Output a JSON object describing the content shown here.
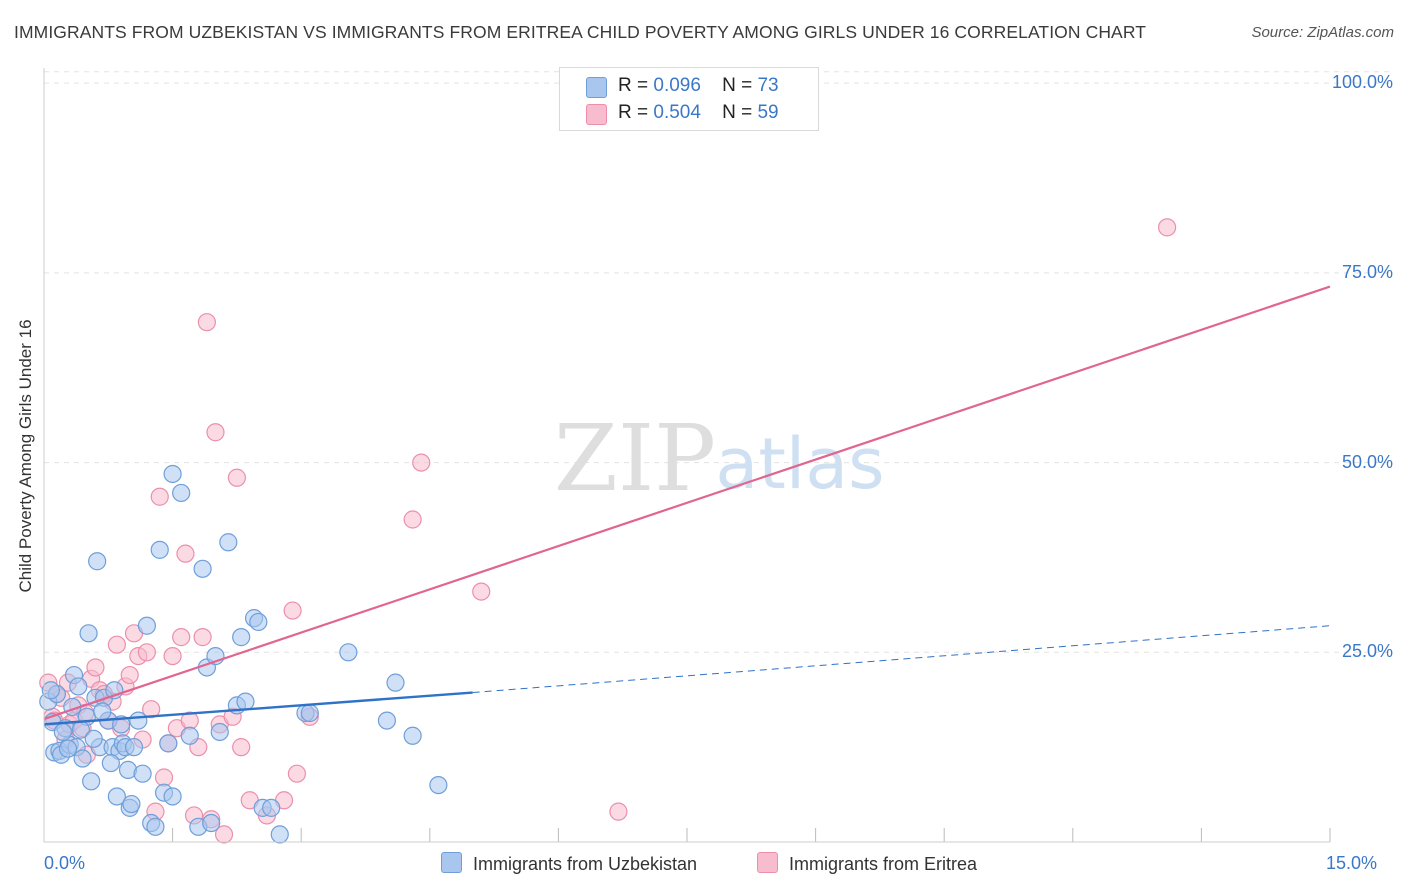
{
  "title": "IMMIGRANTS FROM UZBEKISTAN VS IMMIGRANTS FROM ERITREA CHILD POVERTY AMONG GIRLS UNDER 16 CORRELATION CHART",
  "source": "Source: ZipAtlas.com",
  "watermark": {
    "zip": "ZIP",
    "atlas": "atlas"
  },
  "legend": {
    "uzbekistan": {
      "r_label": "R =",
      "r_value": "0.096",
      "n_label": "N =",
      "n_value": "73"
    },
    "eritrea": {
      "r_label": "R =",
      "r_value": "0.504",
      "n_label": "N =",
      "n_value": "59"
    }
  },
  "chart_data": {
    "type": "scatter",
    "title": "IMMIGRANTS FROM UZBEKISTAN VS IMMIGRANTS FROM ERITREA CHILD POVERTY AMONG GIRLS UNDER 16 CORRELATION CHART",
    "xlabel": "",
    "ylabel": "Child Poverty Among Girls Under 16",
    "xlim": [
      0,
      15
    ],
    "ylim": [
      0,
      102
    ],
    "x_tick_labels": {
      "min": "0.0%",
      "max": "15.0%"
    },
    "y_ticks": [
      {
        "value": 25,
        "label": "25.0%"
      },
      {
        "value": 50,
        "label": "50.0%"
      },
      {
        "value": 75,
        "label": "75.0%"
      },
      {
        "value": 100,
        "label": "100.0%"
      }
    ],
    "grid": true,
    "series": [
      {
        "name": "Immigrants from Uzbekistan",
        "color": "#a9c6ee",
        "stroke": "#6f9fd9",
        "trend": {
          "x0": 0,
          "y0": 15.5,
          "x1": 5.0,
          "y1": 19.7,
          "dash_to_x": 15.0,
          "dash_to_y": 28.5,
          "color": "#2f72c8"
        },
        "points": [
          [
            0.05,
            18.5
          ],
          [
            0.1,
            15.8
          ],
          [
            0.12,
            11.8
          ],
          [
            0.15,
            19.5
          ],
          [
            0.18,
            12.0
          ],
          [
            0.2,
            11.5
          ],
          [
            0.25,
            15.0
          ],
          [
            0.3,
            12.8
          ],
          [
            0.35,
            22.0
          ],
          [
            0.38,
            12.5
          ],
          [
            0.4,
            20.5
          ],
          [
            0.45,
            11.0
          ],
          [
            0.5,
            16.5
          ],
          [
            0.52,
            27.5
          ],
          [
            0.55,
            8.0
          ],
          [
            0.6,
            19.0
          ],
          [
            0.62,
            37.0
          ],
          [
            0.65,
            12.5
          ],
          [
            0.7,
            19.0
          ],
          [
            0.75,
            16.0
          ],
          [
            0.8,
            12.5
          ],
          [
            0.82,
            20.0
          ],
          [
            0.85,
            6.0
          ],
          [
            0.88,
            12.0
          ],
          [
            0.9,
            15.5
          ],
          [
            0.92,
            13.0
          ],
          [
            0.95,
            12.5
          ],
          [
            0.98,
            9.5
          ],
          [
            1.0,
            4.5
          ],
          [
            1.02,
            5.0
          ],
          [
            1.05,
            12.5
          ],
          [
            1.1,
            16.0
          ],
          [
            1.15,
            9.0
          ],
          [
            1.2,
            28.5
          ],
          [
            1.25,
            2.5
          ],
          [
            1.3,
            2.0
          ],
          [
            1.35,
            38.5
          ],
          [
            1.4,
            6.5
          ],
          [
            1.45,
            13.0
          ],
          [
            1.5,
            48.5
          ],
          [
            1.5,
            6.0
          ],
          [
            1.6,
            46.0
          ],
          [
            1.7,
            14.0
          ],
          [
            1.8,
            2.0
          ],
          [
            1.85,
            36.0
          ],
          [
            1.9,
            23.0
          ],
          [
            1.95,
            2.5
          ],
          [
            2.0,
            24.5
          ],
          [
            2.05,
            14.5
          ],
          [
            2.15,
            39.5
          ],
          [
            2.25,
            18.0
          ],
          [
            2.3,
            27.0
          ],
          [
            2.35,
            18.5
          ],
          [
            2.45,
            29.5
          ],
          [
            2.5,
            29.0
          ],
          [
            2.55,
            4.5
          ],
          [
            2.65,
            4.5
          ],
          [
            2.75,
            1.0
          ],
          [
            3.05,
            17.0
          ],
          [
            3.1,
            17.0
          ],
          [
            3.55,
            25.0
          ],
          [
            4.0,
            16.0
          ],
          [
            4.1,
            21.0
          ],
          [
            4.3,
            14.0
          ],
          [
            4.6,
            7.5
          ],
          [
            0.08,
            20.0
          ],
          [
            0.22,
            14.5
          ],
          [
            0.28,
            12.3
          ],
          [
            0.33,
            17.8
          ],
          [
            0.43,
            14.8
          ],
          [
            0.58,
            13.6
          ],
          [
            0.68,
            17.2
          ],
          [
            0.78,
            10.4
          ]
        ]
      },
      {
        "name": "Immigrants from Eritrea",
        "color": "#f7bccd",
        "stroke": "#ec8fad",
        "trend": {
          "x0": 0,
          "y0": 16.2,
          "x1": 15.0,
          "y1": 73.2,
          "color": "#e0668f"
        },
        "points": [
          [
            0.05,
            21.0
          ],
          [
            0.1,
            16.5
          ],
          [
            0.15,
            19.5
          ],
          [
            0.2,
            19.0
          ],
          [
            0.25,
            13.5
          ],
          [
            0.3,
            15.5
          ],
          [
            0.35,
            16.0
          ],
          [
            0.4,
            18.0
          ],
          [
            0.45,
            15.0
          ],
          [
            0.5,
            11.5
          ],
          [
            0.55,
            21.5
          ],
          [
            0.6,
            23.0
          ],
          [
            0.65,
            20.0
          ],
          [
            0.7,
            19.5
          ],
          [
            0.75,
            16.0
          ],
          [
            0.8,
            18.5
          ],
          [
            0.85,
            26.0
          ],
          [
            0.9,
            15.0
          ],
          [
            0.95,
            20.5
          ],
          [
            1.0,
            22.0
          ],
          [
            1.05,
            27.5
          ],
          [
            1.1,
            24.5
          ],
          [
            1.15,
            13.5
          ],
          [
            1.2,
            25.0
          ],
          [
            1.25,
            17.5
          ],
          [
            1.3,
            4.0
          ],
          [
            1.35,
            45.5
          ],
          [
            1.4,
            8.5
          ],
          [
            1.45,
            13.0
          ],
          [
            1.5,
            24.5
          ],
          [
            1.55,
            15.0
          ],
          [
            1.6,
            27.0
          ],
          [
            1.65,
            38.0
          ],
          [
            1.7,
            16.0
          ],
          [
            1.75,
            3.5
          ],
          [
            1.8,
            12.5
          ],
          [
            1.85,
            27.0
          ],
          [
            1.9,
            68.5
          ],
          [
            1.95,
            3.0
          ],
          [
            2.0,
            54.0
          ],
          [
            2.05,
            15.5
          ],
          [
            2.1,
            1.0
          ],
          [
            2.2,
            16.5
          ],
          [
            2.25,
            48.0
          ],
          [
            2.3,
            12.5
          ],
          [
            2.4,
            5.5
          ],
          [
            2.6,
            3.5
          ],
          [
            2.8,
            5.5
          ],
          [
            2.9,
            30.5
          ],
          [
            2.95,
            9.0
          ],
          [
            3.1,
            16.5
          ],
          [
            4.3,
            42.5
          ],
          [
            4.4,
            50.0
          ],
          [
            5.1,
            33.0
          ],
          [
            6.7,
            4.0
          ],
          [
            13.1,
            81.0
          ],
          [
            0.12,
            16.0
          ],
          [
            0.28,
            21.0
          ],
          [
            0.48,
            17.0
          ]
        ]
      }
    ]
  },
  "axes": {
    "x_min_label": "0.0%",
    "x_max_label": "15.0%",
    "y_title": "Child Poverty Among Girls Under 16"
  },
  "bottom_legend": {
    "uzbekistan": "Immigrants from Uzbekistan",
    "eritrea": "Immigrants from Eritrea"
  }
}
